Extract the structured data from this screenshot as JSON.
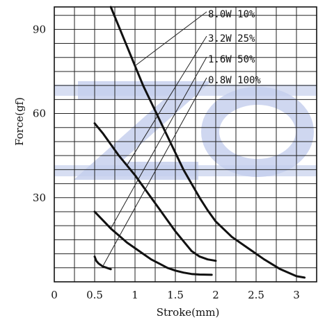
{
  "chart_data": {
    "type": "line",
    "xlabel": "Stroke(mm)",
    "ylabel": "Force(gf)",
    "xlim": [
      0,
      3.25
    ],
    "ylim": [
      0,
      98
    ],
    "grid": true,
    "x_ticks": [
      {
        "value": 0,
        "label": "0"
      },
      {
        "value": 0.5,
        "label": "0.5"
      },
      {
        "value": 1,
        "label": "1"
      },
      {
        "value": 1.5,
        "label": "1.5"
      },
      {
        "value": 2,
        "label": "2"
      },
      {
        "value": 2.5,
        "label": "2.5"
      },
      {
        "value": 3,
        "label": "3"
      }
    ],
    "y_ticks": [
      {
        "value": 30,
        "label": "30"
      },
      {
        "value": 60,
        "label": "60"
      },
      {
        "value": 90,
        "label": "90"
      }
    ],
    "watermark": "ZO",
    "series": [
      {
        "name": "8.0W 10%",
        "points": [
          [
            0.7,
            98
          ],
          [
            0.8,
            91
          ],
          [
            0.9,
            84
          ],
          [
            1.0,
            77
          ],
          [
            1.1,
            70
          ],
          [
            1.2,
            64
          ],
          [
            1.3,
            58
          ],
          [
            1.4,
            52
          ],
          [
            1.5,
            46
          ],
          [
            1.6,
            40
          ],
          [
            1.7,
            35
          ],
          [
            1.8,
            30
          ],
          [
            1.9,
            25.5
          ],
          [
            2.0,
            21.5
          ],
          [
            2.2,
            16
          ],
          [
            2.4,
            12
          ],
          [
            2.6,
            8
          ],
          [
            2.8,
            4.5
          ],
          [
            3.0,
            2
          ],
          [
            3.1,
            1.5
          ]
        ]
      },
      {
        "name": "3.2W 25%",
        "points": [
          [
            0.5,
            56.5
          ],
          [
            0.6,
            53
          ],
          [
            0.7,
            49
          ],
          [
            0.8,
            45
          ],
          [
            0.9,
            41.5
          ],
          [
            1.0,
            38
          ],
          [
            1.1,
            34
          ],
          [
            1.2,
            30
          ],
          [
            1.3,
            26
          ],
          [
            1.4,
            22
          ],
          [
            1.5,
            18
          ],
          [
            1.6,
            14.5
          ],
          [
            1.7,
            11
          ],
          [
            1.8,
            9
          ],
          [
            1.9,
            8
          ],
          [
            2.0,
            7.5
          ]
        ]
      },
      {
        "name": "1.6W 50%",
        "points": [
          [
            0.5,
            25
          ],
          [
            0.6,
            22
          ],
          [
            0.7,
            19
          ],
          [
            0.8,
            16.5
          ],
          [
            0.9,
            14
          ],
          [
            1.0,
            12
          ],
          [
            1.1,
            10
          ],
          [
            1.2,
            8
          ],
          [
            1.3,
            6.5
          ],
          [
            1.4,
            5
          ],
          [
            1.5,
            4
          ],
          [
            1.6,
            3.3
          ],
          [
            1.7,
            2.8
          ],
          [
            1.8,
            2.6
          ],
          [
            1.95,
            2.5
          ]
        ]
      },
      {
        "name": "0.8W 100%",
        "points": [
          [
            0.5,
            9
          ],
          [
            0.52,
            7.5
          ],
          [
            0.55,
            6.5
          ],
          [
            0.6,
            5.5
          ],
          [
            0.65,
            5
          ],
          [
            0.7,
            4.5
          ]
        ]
      }
    ]
  }
}
